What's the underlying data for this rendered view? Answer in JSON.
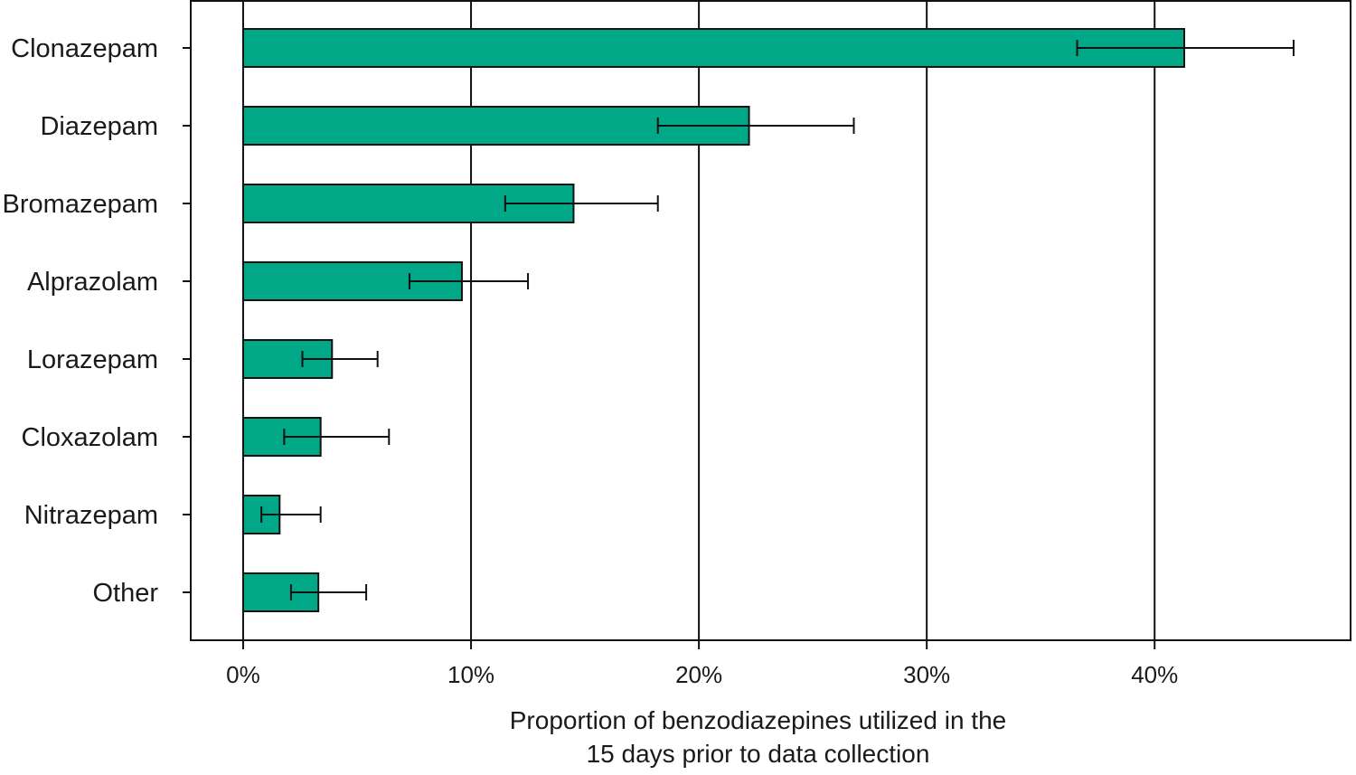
{
  "chart_data": {
    "type": "bar",
    "orientation": "horizontal",
    "categories": [
      "Clonazepam",
      "Diazepam",
      "Bromazepam",
      "Alprazolam",
      "Lorazepam",
      "Cloxazolam",
      "Nitrazepam",
      "Other"
    ],
    "values": [
      41.3,
      22.2,
      14.5,
      9.6,
      3.9,
      3.4,
      1.6,
      3.3
    ],
    "error_low": [
      36.6,
      18.2,
      11.5,
      7.3,
      2.6,
      1.8,
      0.8,
      2.1
    ],
    "error_high": [
      46.1,
      26.8,
      18.2,
      12.5,
      5.9,
      6.4,
      3.4,
      5.4
    ],
    "xlim": [
      -2.3,
      48.6
    ],
    "xticks": [
      0,
      10,
      20,
      30,
      40
    ],
    "xtick_labels": [
      "0%",
      "10%",
      "20%",
      "30%",
      "40%"
    ],
    "xlabel_lines": [
      "Proportion of benzodiazepines utilized in the",
      "15 days prior to data collection"
    ],
    "ylabel": "",
    "grid": "vertical",
    "legend": "none",
    "colors": {
      "bar": "#00a887",
      "bar_edge": "#111111",
      "axis": "#111111"
    }
  }
}
